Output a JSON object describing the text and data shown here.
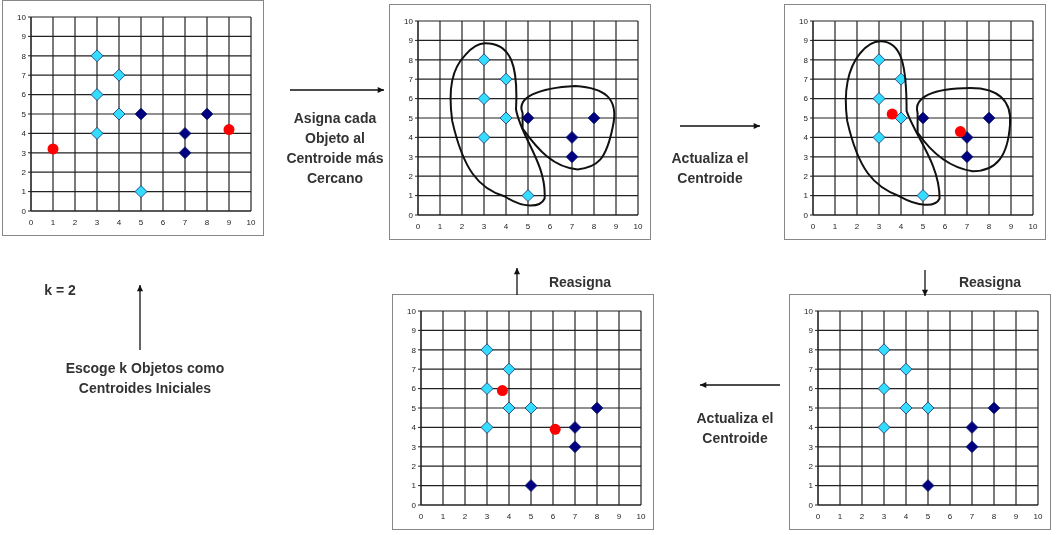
{
  "chart_data": [
    {
      "type": "scatter",
      "xlim": [
        0,
        10
      ],
      "ylim": [
        0,
        10
      ],
      "xticks": [
        0,
        1,
        2,
        3,
        4,
        5,
        6,
        7,
        8,
        9,
        10
      ],
      "yticks": [
        0,
        1,
        2,
        3,
        4,
        5,
        6,
        7,
        8,
        9,
        10
      ],
      "grid": true,
      "legend": false,
      "annotations": [
        "k = 2",
        "Escoge k Objetos como Centroides Iniciales"
      ],
      "series": [
        {
          "marker": "diamond",
          "color": "#33ddff",
          "x": [
            3,
            4,
            3,
            4,
            3,
            5
          ],
          "values": [
            8,
            7,
            6,
            5,
            4,
            1
          ]
        },
        {
          "marker": "diamond",
          "color": "#000080",
          "x": [
            5,
            7,
            8,
            7
          ],
          "values": [
            5,
            4,
            5,
            3
          ]
        },
        {
          "marker": "circle",
          "color": "#ff0000",
          "x": [
            1,
            9
          ],
          "values": [
            3.2,
            4.2
          ]
        }
      ]
    },
    {
      "type": "scatter",
      "xlim": [
        0,
        10
      ],
      "ylim": [
        0,
        10
      ],
      "xticks": [
        0,
        1,
        2,
        3,
        4,
        5,
        6,
        7,
        8,
        9,
        10
      ],
      "yticks": [
        0,
        1,
        2,
        3,
        4,
        5,
        6,
        7,
        8,
        9,
        10
      ],
      "grid": true,
      "legend": false,
      "annotations": [
        "Asigna cada Objeto al Centroide más Cercano"
      ],
      "series": [
        {
          "marker": "diamond",
          "color": "#33ddff",
          "x": [
            3,
            4,
            3,
            4,
            3,
            5
          ],
          "values": [
            8,
            7,
            6,
            5,
            4,
            1
          ]
        },
        {
          "marker": "diamond",
          "color": "#000080",
          "x": [
            5,
            7,
            8,
            7
          ],
          "values": [
            5,
            4,
            5,
            3
          ]
        }
      ]
    },
    {
      "type": "scatter",
      "xlim": [
        0,
        10
      ],
      "ylim": [
        0,
        10
      ],
      "xticks": [
        0,
        1,
        2,
        3,
        4,
        5,
        6,
        7,
        8,
        9,
        10
      ],
      "yticks": [
        0,
        1,
        2,
        3,
        4,
        5,
        6,
        7,
        8,
        9,
        10
      ],
      "grid": true,
      "legend": false,
      "annotations": [
        "Actualiza el Centroide"
      ],
      "series": [
        {
          "marker": "diamond",
          "color": "#33ddff",
          "x": [
            3,
            4,
            3,
            4,
            3,
            5
          ],
          "values": [
            8,
            7,
            6,
            5,
            4,
            1
          ]
        },
        {
          "marker": "diamond",
          "color": "#000080",
          "x": [
            5,
            7,
            8,
            7
          ],
          "values": [
            5,
            4,
            5,
            3
          ]
        },
        {
          "marker": "circle",
          "color": "#ff0000",
          "x": [
            3.6,
            6.7
          ],
          "values": [
            5.2,
            4.3
          ]
        }
      ]
    },
    {
      "type": "scatter",
      "xlim": [
        0,
        10
      ],
      "ylim": [
        0,
        10
      ],
      "xticks": [
        0,
        1,
        2,
        3,
        4,
        5,
        6,
        7,
        8,
        9,
        10
      ],
      "yticks": [
        0,
        1,
        2,
        3,
        4,
        5,
        6,
        7,
        8,
        9,
        10
      ],
      "grid": true,
      "legend": false,
      "annotations": [
        "Reasigna",
        "Actualiza el Centroide"
      ],
      "series": [
        {
          "marker": "diamond",
          "color": "#33ddff",
          "x": [
            3,
            4,
            3,
            4,
            3,
            5
          ],
          "values": [
            8,
            7,
            6,
            5,
            4,
            5
          ]
        },
        {
          "marker": "diamond",
          "color": "#000080",
          "x": [
            7,
            8,
            7,
            5
          ],
          "values": [
            4,
            5,
            3,
            1
          ]
        },
        {
          "marker": "circle",
          "color": "#ff0000",
          "x": [
            3.7,
            6.1
          ],
          "values": [
            5.9,
            3.9
          ]
        }
      ]
    },
    {
      "type": "scatter",
      "xlim": [
        0,
        10
      ],
      "ylim": [
        0,
        10
      ],
      "xticks": [
        0,
        1,
        2,
        3,
        4,
        5,
        6,
        7,
        8,
        9,
        10
      ],
      "yticks": [
        0,
        1,
        2,
        3,
        4,
        5,
        6,
        7,
        8,
        9,
        10
      ],
      "grid": true,
      "legend": false,
      "annotations": [
        "Reasigna"
      ],
      "series": [
        {
          "marker": "diamond",
          "color": "#33ddff",
          "x": [
            3,
            4,
            3,
            4,
            3,
            5
          ],
          "values": [
            8,
            7,
            6,
            5,
            4,
            5
          ]
        },
        {
          "marker": "diamond",
          "color": "#000080",
          "x": [
            7,
            8,
            7,
            5
          ],
          "values": [
            4,
            5,
            3,
            1
          ]
        }
      ]
    }
  ]
}
